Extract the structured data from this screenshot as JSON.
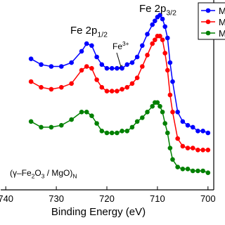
{
  "chart_data": {
    "type": "line",
    "xlabel": "Binding Energy (eV)",
    "x": [
      735,
      733,
      731,
      729,
      727,
      725,
      724,
      723,
      722,
      721,
      720,
      719,
      718,
      717,
      716,
      715,
      714,
      713,
      712,
      711,
      710.5,
      710,
      709.5,
      709,
      708.5,
      708,
      707.5,
      707,
      706,
      705,
      704,
      703,
      702,
      701,
      700
    ],
    "series": [
      {
        "name": "M",
        "color": "#0000ff",
        "values": [
          69,
          66,
          65,
          65,
          67,
          73,
          77,
          76,
          70,
          66,
          64,
          64,
          64,
          64,
          66,
          67,
          70,
          76,
          82,
          87,
          89,
          91,
          92,
          90,
          86,
          80,
          67,
          57,
          41,
          36,
          34,
          33,
          31,
          31,
          30
        ]
      },
      {
        "name": "M",
        "color": "#ff0000",
        "values": [
          57,
          54,
          53,
          54,
          56,
          63,
          65,
          64,
          58,
          54,
          52,
          52,
          52,
          53,
          54,
          56,
          59,
          65,
          71,
          77,
          79,
          81,
          81,
          79,
          72,
          63,
          50,
          41,
          27,
          23,
          22,
          22,
          21,
          21,
          21
        ]
      },
      {
        "name": "M",
        "color": "#008000",
        "values": [
          36,
          33,
          33,
          34,
          37,
          41,
          41,
          39,
          35,
          31,
          30,
          30,
          30,
          31,
          31,
          33,
          36,
          38,
          41,
          44,
          46,
          46,
          44,
          41,
          35,
          30,
          22,
          16,
          12,
          11,
          11,
          10,
          10,
          10,
          9
        ]
      }
    ],
    "xlim": [
      741,
      699
    ],
    "xticks": [
      740,
      730,
      720,
      710,
      700
    ],
    "ylim": [
      0,
      100
    ],
    "legend": "upper right",
    "annotations": [
      {
        "parts": [
          {
            "text": "Fe 2p"
          },
          {
            "text": "1/2",
            "shift": "sub"
          }
        ]
      },
      {
        "parts": [
          {
            "text": "Fe 2p"
          },
          {
            "text": "3/2",
            "shift": "sub"
          }
        ]
      },
      {
        "parts": [
          {
            "text": "Fe"
          },
          {
            "text": "3+",
            "shift": "super"
          }
        ]
      },
      {
        "parts": [
          {
            "text": "(γ–Fe"
          },
          {
            "text": "2",
            "shift": "sub"
          },
          {
            "text": "O"
          },
          {
            "text": "3",
            "shift": "sub"
          },
          {
            "text": " / MgO)"
          },
          {
            "text": "N",
            "shift": "sub"
          }
        ]
      }
    ]
  }
}
